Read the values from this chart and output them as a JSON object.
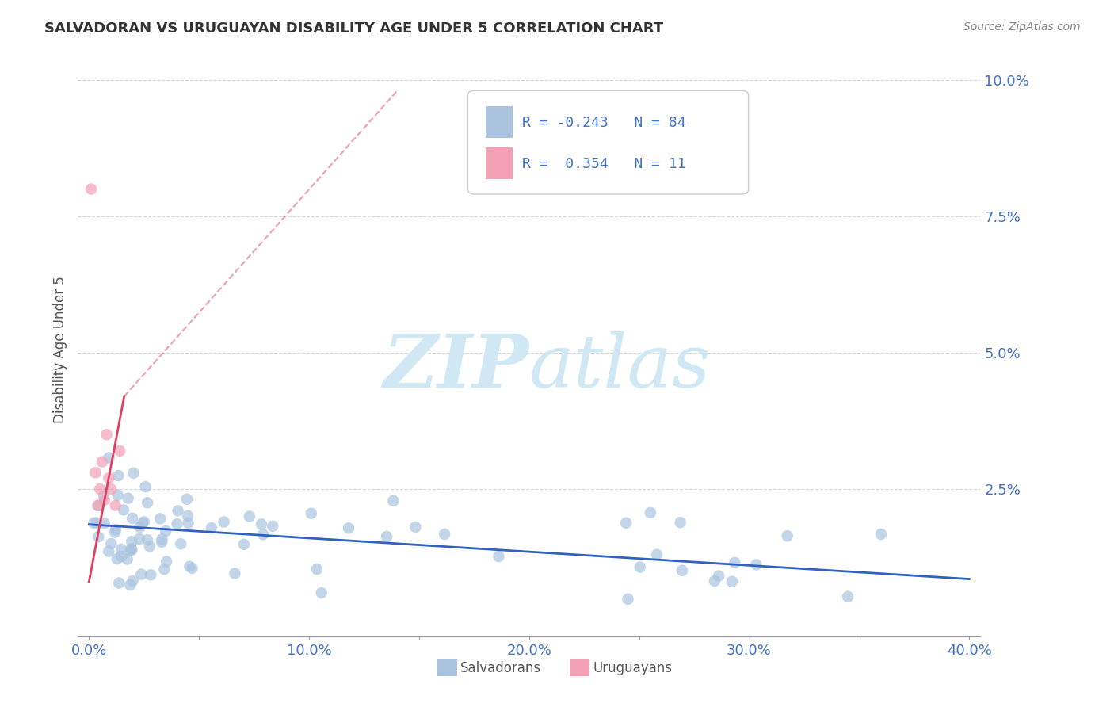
{
  "title": "SALVADORAN VS URUGUAYAN DISABILITY AGE UNDER 5 CORRELATION CHART",
  "source_text": "Source: ZipAtlas.com",
  "ylabel": "Disability Age Under 5",
  "xlim": [
    -0.005,
    0.405
  ],
  "ylim": [
    -0.002,
    0.103
  ],
  "xtick_labels": [
    "0.0%",
    "",
    "10.0%",
    "",
    "20.0%",
    "",
    "30.0%",
    "",
    "40.0%"
  ],
  "xtick_vals": [
    0.0,
    0.05,
    0.1,
    0.15,
    0.2,
    0.25,
    0.3,
    0.35,
    0.4
  ],
  "ytick_labels": [
    "10.0%",
    "7.5%",
    "5.0%",
    "2.5%",
    ""
  ],
  "ytick_vals": [
    0.1,
    0.075,
    0.05,
    0.025,
    0.0
  ],
  "ytick_grid": [
    0.1,
    0.075,
    0.05,
    0.025
  ],
  "legend_labels": [
    "Salvadorans",
    "Uruguayans"
  ],
  "R_salvadoran": -0.243,
  "N_salvadoran": 84,
  "R_uruguayan": 0.354,
  "N_uruguayan": 11,
  "color_salvadoran": "#aac4e0",
  "color_uruguayan": "#f4a0b5",
  "color_salvadoran_line": "#3060c0",
  "color_uruguayan_line": "#e04060",
  "watermark_color": "#d0e8f4",
  "background_color": "#ffffff",
  "title_color": "#333333",
  "axis_color": "#4472C4",
  "tick_label_color_x": "#4472C4",
  "grid_color": "#cccccc",
  "sal_trend_x0": 0.0,
  "sal_trend_y0": 0.0185,
  "sal_trend_x1": 0.4,
  "sal_trend_y1": 0.0085,
  "uru_trend_x0": 0.0,
  "uru_trend_y0": 0.008,
  "uru_trend_x1": 0.016,
  "uru_trend_y1": 0.042
}
